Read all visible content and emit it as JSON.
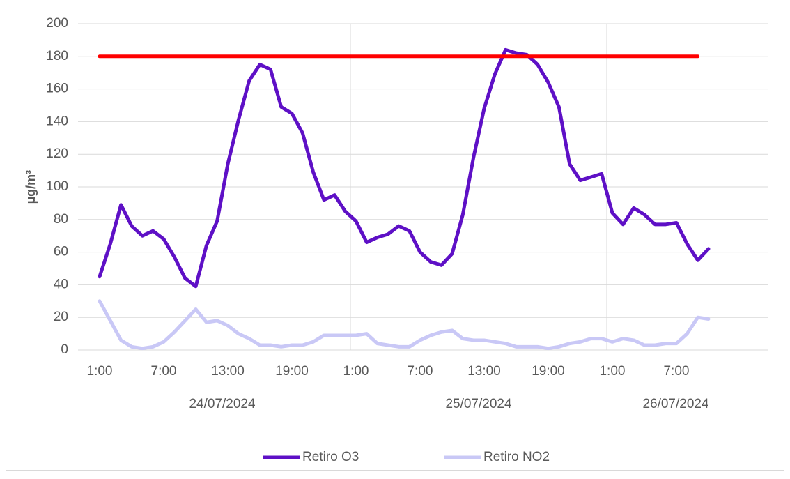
{
  "chart_data": {
    "type": "line",
    "y_label": "µg/m³",
    "categories": [
      "1:00",
      null,
      null,
      null,
      null,
      null,
      "7:00",
      null,
      null,
      null,
      null,
      null,
      "13:00",
      null,
      null,
      null,
      null,
      null,
      "19:00",
      null,
      null,
      null,
      null,
      null,
      "1:00",
      null,
      null,
      null,
      null,
      null,
      "7:00",
      null,
      null,
      null,
      null,
      null,
      "13:00",
      null,
      null,
      null,
      null,
      null,
      "19:00",
      null,
      null,
      null,
      null,
      null,
      "1:00",
      null,
      null,
      null,
      null,
      null,
      "7:00",
      null,
      null,
      null
    ],
    "dates": [
      "24/07/2024",
      "25/07/2024",
      "26/07/2024"
    ],
    "series": [
      {
        "name": "Retiro O3",
        "color": "#5e10c6",
        "values": [
          45,
          65,
          89,
          76,
          70,
          73,
          68,
          57,
          44,
          39,
          64,
          79,
          114,
          141,
          165,
          175,
          172,
          149,
          145,
          133,
          109,
          92,
          95,
          85,
          79,
          66,
          69,
          71,
          76,
          73,
          60,
          54,
          52,
          59,
          83,
          118,
          148,
          169,
          184,
          182,
          181,
          175,
          164,
          149,
          114,
          104,
          106,
          108,
          84,
          77,
          87,
          83,
          77,
          77,
          78,
          65,
          55,
          62
        ]
      },
      {
        "name": "Retiro NO2",
        "color": "#c9c8f6",
        "values": [
          30,
          18,
          6,
          2,
          1,
          2,
          5,
          11,
          18,
          25,
          17,
          18,
          15,
          10,
          7,
          3,
          3,
          2,
          3,
          3,
          5,
          9,
          9,
          9,
          9,
          10,
          4,
          3,
          2,
          2,
          6,
          9,
          11,
          12,
          7,
          6,
          6,
          5,
          4,
          2,
          2,
          2,
          1,
          2,
          4,
          5,
          7,
          7,
          5,
          7,
          6,
          3,
          3,
          4,
          4,
          10,
          20,
          19
        ]
      },
      {
        "color": "#ff0000",
        "values": [
          180,
          180,
          180,
          180,
          180,
          180,
          180,
          180,
          180,
          180,
          180,
          180,
          180,
          180,
          180,
          180,
          180,
          180,
          180,
          180,
          180,
          180,
          180,
          180,
          180,
          180,
          180,
          180,
          180,
          180,
          180,
          180,
          180,
          180,
          180,
          180,
          180,
          180,
          180,
          180,
          180,
          180,
          180,
          180,
          180,
          180,
          180,
          180,
          180,
          180,
          180,
          180,
          180,
          180,
          180,
          180,
          180,
          null
        ]
      }
    ],
    "ylim": [
      0,
      200
    ],
    "yticks": [
      0,
      20,
      40,
      60,
      80,
      100,
      120,
      140,
      160,
      180,
      200
    ],
    "grid": true
  }
}
